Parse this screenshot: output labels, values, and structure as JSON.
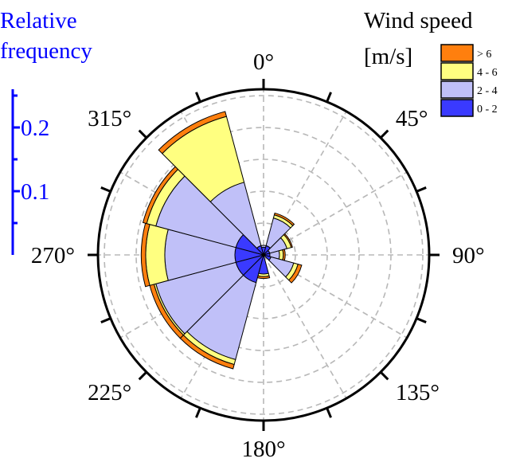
{
  "chart_data": {
    "type": "wind-rose (stacked polar bar)",
    "title": "",
    "radial_axis": {
      "title_lines": [
        "Relative",
        "frequency"
      ],
      "ticks": [
        {
          "value": 0.1,
          "label": "0.1"
        },
        {
          "value": 0.2,
          "label": "0.2"
        }
      ],
      "minor_ticks": [
        0.05,
        0.15,
        0.25
      ],
      "range": [
        0,
        0.26
      ],
      "gridlines": [
        0.05,
        0.1,
        0.15,
        0.2,
        0.25
      ],
      "color": "#0000ff"
    },
    "angular_axis": {
      "labels": [
        "0°",
        "45°",
        "90°",
        "135°",
        "180°",
        "225°",
        "270°",
        "315°"
      ],
      "label_angles": [
        0,
        45,
        90,
        135,
        180,
        225,
        270,
        315
      ],
      "tick_angles": [
        0,
        22.5,
        45,
        67.5,
        90,
        112.5,
        135,
        157.5,
        180,
        202.5,
        225,
        247.5,
        270,
        292.5,
        315,
        337.5
      ],
      "direction": "clockwise",
      "zero_at": "top"
    },
    "legend": {
      "title_lines": [
        "Wind speed",
        "[m/s]"
      ],
      "placement": "top-right",
      "entries": [
        {
          "label": "> 6",
          "color": "#ff7f0e"
        },
        {
          "label": "4 - 6",
          "color": "#ffff80"
        },
        {
          "label": "2 - 4",
          "color": "#c0c0f8"
        },
        {
          "label": "0 - 2",
          "color": "#3a3aff"
        }
      ]
    },
    "sectors": [
      {
        "direction": 30,
        "width": 30,
        "cumulative": {
          "0-2": 0.015,
          "2-4": 0.06,
          "4-6": 0.065,
          ">6": 0.068
        }
      },
      {
        "direction": 60,
        "width": 30,
        "cumulative": {
          "0-2": 0.01,
          "2-4": 0.038,
          "4-6": 0.045,
          ">6": 0.047
        }
      },
      {
        "direction": 90,
        "width": 30,
        "cumulative": {
          "0-2": 0.01,
          "2-4": 0.025,
          "4-6": 0.031,
          ">6": 0.034
        }
      },
      {
        "direction": 120,
        "width": 30,
        "cumulative": {
          "0-2": 0.012,
          "2-4": 0.049,
          "4-6": 0.056,
          ">6": 0.062
        }
      },
      {
        "direction": 180,
        "width": 30,
        "cumulative": {
          "0-2": 0.03,
          "2-4": 0.03,
          "4-6": 0.034,
          ">6": 0.037
        }
      },
      {
        "direction": 210,
        "width": 30,
        "cumulative": {
          "0-2": 0.045,
          "2-4": 0.17,
          "4-6": 0.178,
          ">6": 0.185
        }
      },
      {
        "direction": 240,
        "width": 30,
        "cumulative": {
          "0-2": 0.045,
          "2-4": 0.175,
          "4-6": 0.178,
          ">6": 0.185
        }
      },
      {
        "direction": 270,
        "width": 30,
        "cumulative": {
          "0-2": 0.045,
          "2-4": 0.155,
          "4-6": 0.185,
          ">6": 0.192
        }
      },
      {
        "direction": 300,
        "width": 30,
        "cumulative": {
          "0-2": 0.045,
          "2-4": 0.175,
          "4-6": 0.19,
          ">6": 0.196
        }
      },
      {
        "direction": 330,
        "width": 30,
        "cumulative": {
          "0-2": 0.015,
          "2-4": 0.118,
          "4-6": 0.225,
          ">6": 0.233
        }
      },
      {
        "direction": 0,
        "width": 30,
        "cumulative": {
          "0-2": 0.012,
          "2-4": 0.015,
          "4-6": 0.015,
          ">6": 0.015
        }
      }
    ]
  }
}
